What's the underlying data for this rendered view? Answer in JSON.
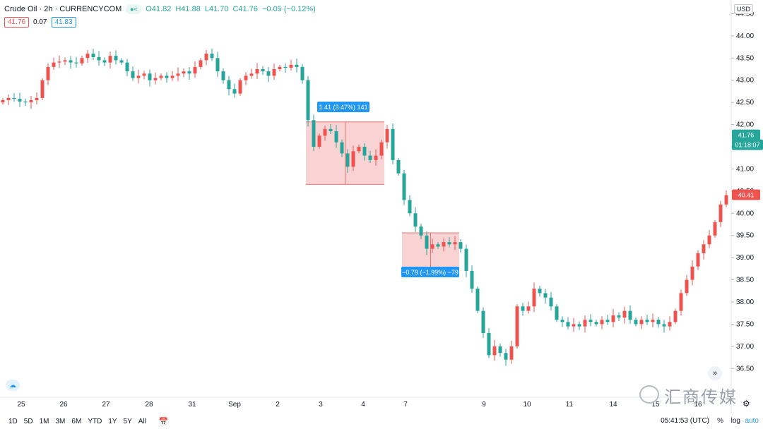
{
  "header": {
    "title": "Crude Oil · 2h · CURRENCYCOM",
    "open": "O41.82",
    "high": "H41.88",
    "low": "L41.70",
    "close": "C41.76",
    "change": "−0.05 (−0.12%)",
    "bid": "41.76",
    "spread": "0.07",
    "ask": "41.83"
  },
  "currency": "USD",
  "price_labels": {
    "last": "41.76",
    "countdown": "01:18:07",
    "marker": "40.41"
  },
  "measure_up": "1.41 (3.47%) 141",
  "measure_down": "−0.79 (−1.99%) −79",
  "bottom": {
    "ranges": [
      "1D",
      "5D",
      "1M",
      "3M",
      "6M",
      "YTD",
      "1Y",
      "5Y",
      "All"
    ],
    "time": "05:41:53 (UTC)",
    "percent": "%",
    "log": "log",
    "auto": "auto"
  },
  "watermark": "汇商传媒",
  "colors": {
    "up": "#ef5350",
    "down": "#26a69a",
    "box": "#f8c8c8",
    "label": "#2196f3"
  },
  "chart_data": {
    "type": "candlestick",
    "title": "Crude Oil · 2h · CURRENCYCOM",
    "y_ticks": [
      36.5,
      37.0,
      37.5,
      38.0,
      38.5,
      39.0,
      39.5,
      40.0,
      40.5,
      41.0,
      41.5,
      42.0,
      42.5,
      43.0,
      43.5,
      44.0,
      44.5
    ],
    "ylim": [
      35.9,
      44.65
    ],
    "x_labels": [
      "25",
      "26",
      "27",
      "28",
      "31",
      "Sep",
      "2",
      "3",
      "4",
      "7",
      "9",
      "10",
      "11",
      "14",
      "15",
      "16"
    ],
    "close_path": [
      42.55,
      42.6,
      42.58,
      42.52,
      42.5,
      42.55,
      42.6,
      43.0,
      43.3,
      43.4,
      43.42,
      43.45,
      43.4,
      43.38,
      43.5,
      43.6,
      43.52,
      43.45,
      43.4,
      43.55,
      43.45,
      43.4,
      43.2,
      43.05,
      43.1,
      43.15,
      43.0,
      43.05,
      43.1,
      43.05,
      43.1,
      43.15,
      43.2,
      43.15,
      43.3,
      43.45,
      43.6,
      43.5,
      43.2,
      43.0,
      42.8,
      42.7,
      43.0,
      43.1,
      43.15,
      43.25,
      43.2,
      43.1,
      43.25,
      43.3,
      43.28,
      43.35,
      43.3,
      43.0,
      42.1,
      41.5,
      41.75,
      41.9,
      41.85,
      41.6,
      41.35,
      41.05,
      41.4,
      41.5,
      41.3,
      41.2,
      41.3,
      41.6,
      41.9,
      41.2,
      40.9,
      40.3,
      40.0,
      39.7,
      39.5,
      39.2,
      39.3,
      39.25,
      39.35,
      39.3,
      39.35,
      39.2,
      38.7,
      38.3,
      37.8,
      37.3,
      36.8,
      37.0,
      36.85,
      36.7,
      37.0,
      37.9,
      37.8,
      37.9,
      38.3,
      38.2,
      38.1,
      37.9,
      37.6,
      37.55,
      37.45,
      37.5,
      37.45,
      37.6,
      37.55,
      37.5,
      37.6,
      37.55,
      37.7,
      37.65,
      37.8,
      37.6,
      37.5,
      37.6,
      37.55,
      37.6,
      37.5,
      37.45,
      37.55,
      37.8,
      38.2,
      38.5,
      38.8,
      39.1,
      39.3,
      39.5,
      39.8,
      40.2,
      40.41
    ]
  }
}
